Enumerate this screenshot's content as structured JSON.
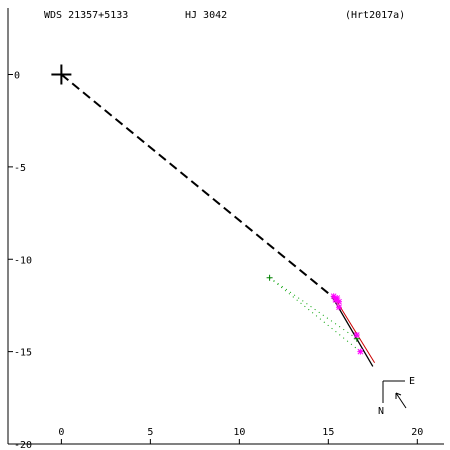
{
  "header": {
    "id": "WDS 21357+5133",
    "name": "HJ 3042",
    "ref": "(Hrt2017a)"
  },
  "compass": {
    "east": "E",
    "north": "N"
  },
  "colors": {
    "axes": "#000000",
    "measurement": "#ff00ff",
    "first_obs": "#008000",
    "orbit": "#000000",
    "fit": "#cc0000",
    "residual": "#00a000"
  },
  "chart_data": {
    "type": "scatter",
    "title": "",
    "xlabel": "",
    "ylabel": "",
    "xlim": [
      -3,
      21.5
    ],
    "ylim": [
      -20,
      3.6
    ],
    "x_ticks": [
      0,
      5,
      10,
      15,
      20
    ],
    "y_ticks": [
      0,
      -5,
      -10,
      -15,
      -20
    ],
    "x_tick_labels": [
      "0",
      "5",
      "10",
      "15",
      "20"
    ],
    "y_tick_labels": [
      "0",
      "-5",
      "-10",
      "-15",
      "-20"
    ],
    "grid": false,
    "primary": {
      "x": 0,
      "y": 0
    },
    "dashed_line": {
      "from": [
        0,
        0
      ],
      "to": [
        15.2,
        -12.0
      ]
    },
    "orbit_line": {
      "from": [
        15.2,
        -12.0
      ],
      "to": [
        17.5,
        -15.8
      ]
    },
    "fit_line": {
      "from": [
        15.3,
        -12.0
      ],
      "to": [
        17.6,
        -15.6
      ]
    },
    "residuals": [
      {
        "from": [
          11.7,
          -11.0
        ],
        "to": [
          16.6,
          -14.3
        ]
      },
      {
        "from": [
          11.7,
          -11.0
        ],
        "to": [
          16.8,
          -15.0
        ]
      }
    ],
    "first_observations": [
      {
        "x": 11.7,
        "y": -11.0
      },
      {
        "x": 16.6,
        "y": -14.3
      }
    ],
    "measurements": [
      {
        "x": 15.3,
        "y": -12.0
      },
      {
        "x": 15.5,
        "y": -12.1
      },
      {
        "x": 15.6,
        "y": -12.3
      },
      {
        "x": 15.6,
        "y": -12.6
      },
      {
        "x": 15.4,
        "y": -12.2
      },
      {
        "x": 16.6,
        "y": -14.1
      },
      {
        "x": 16.8,
        "y": -15.0
      }
    ]
  }
}
